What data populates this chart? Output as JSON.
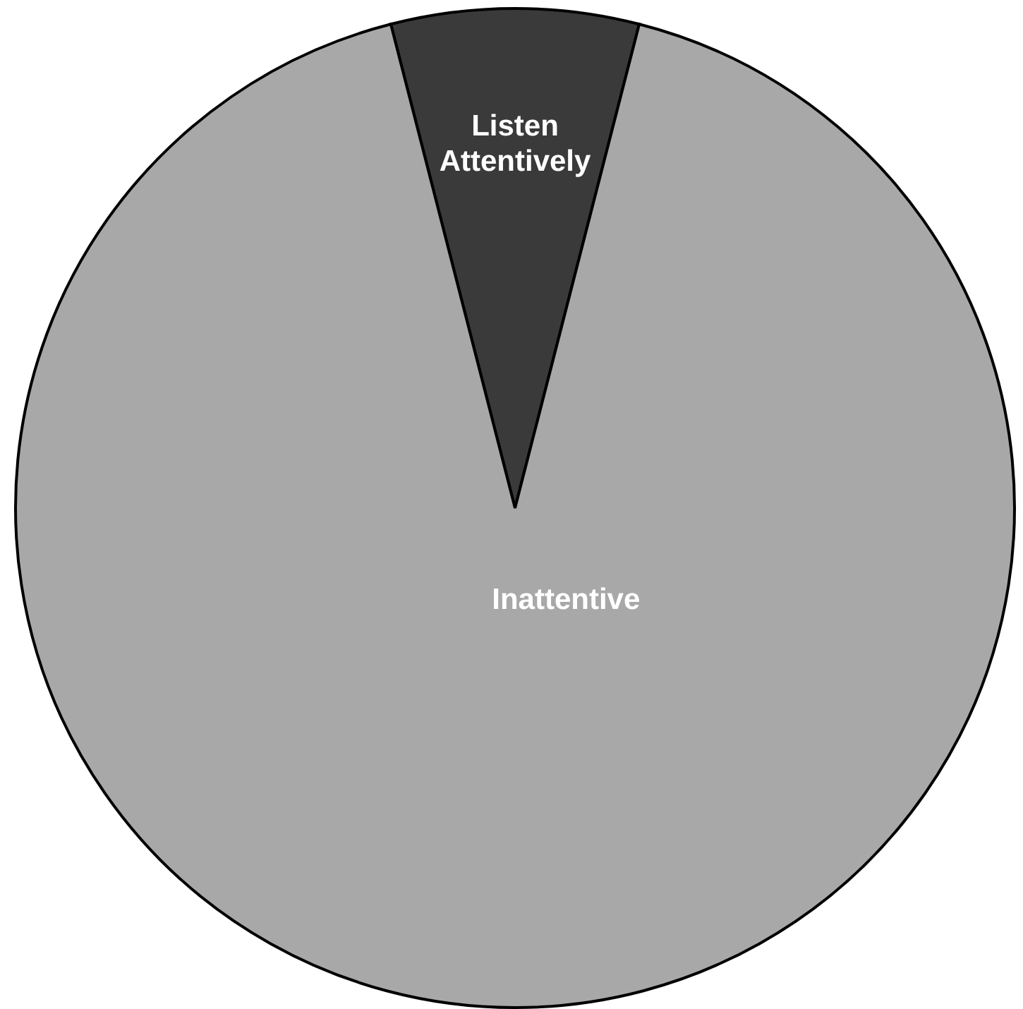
{
  "chart_data": {
    "type": "pie",
    "categories": [
      "Listen Attentively",
      "Inattentive"
    ],
    "values": [
      8,
      92
    ],
    "colors": [
      "#3a3a3a",
      "#a8a8a8"
    ]
  }
}
